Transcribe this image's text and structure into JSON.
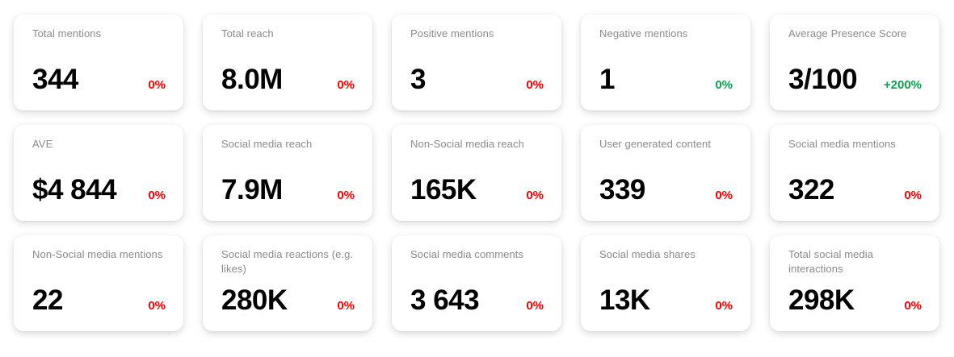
{
  "theme": {
    "background_color": "#ffffff",
    "card_color": "#ffffff",
    "title_color": "#8b8b8b",
    "value_color": "#000000",
    "negative_change_color": "#ff0000",
    "positive_change_color": "#0ea150"
  },
  "cards": [
    {
      "title": "Total mentions",
      "value": "344",
      "change": "0%",
      "trend": "negative"
    },
    {
      "title": "Total reach",
      "value": "8.0M",
      "change": "0%",
      "trend": "negative"
    },
    {
      "title": "Positive mentions",
      "value": "3",
      "change": "0%",
      "trend": "negative"
    },
    {
      "title": "Negative mentions",
      "value": "1",
      "change": "0%",
      "trend": "positive"
    },
    {
      "title": "Average Presence Score",
      "value": "3/100",
      "change": "+200%",
      "trend": "positive"
    },
    {
      "title": "AVE",
      "value": "$4 844",
      "change": "0%",
      "trend": "negative"
    },
    {
      "title": "Social media reach",
      "value": "7.9M",
      "change": "0%",
      "trend": "negative"
    },
    {
      "title": "Non-Social media reach",
      "value": "165K",
      "change": "0%",
      "trend": "negative"
    },
    {
      "title": "User generated content",
      "value": "339",
      "change": "0%",
      "trend": "negative"
    },
    {
      "title": "Social media mentions",
      "value": "322",
      "change": "0%",
      "trend": "negative"
    },
    {
      "title": "Non-Social media mentions",
      "value": "22",
      "change": "0%",
      "trend": "negative"
    },
    {
      "title": "Social media reactions (e.g. likes)",
      "value": "280K",
      "change": "0%",
      "trend": "negative"
    },
    {
      "title": "Social media comments",
      "value": "3 643",
      "change": "0%",
      "trend": "negative"
    },
    {
      "title": "Social media shares",
      "value": "13K",
      "change": "0%",
      "trend": "negative"
    },
    {
      "title": "Total social media interactions",
      "value": "298K",
      "change": "0%",
      "trend": "negative"
    }
  ]
}
